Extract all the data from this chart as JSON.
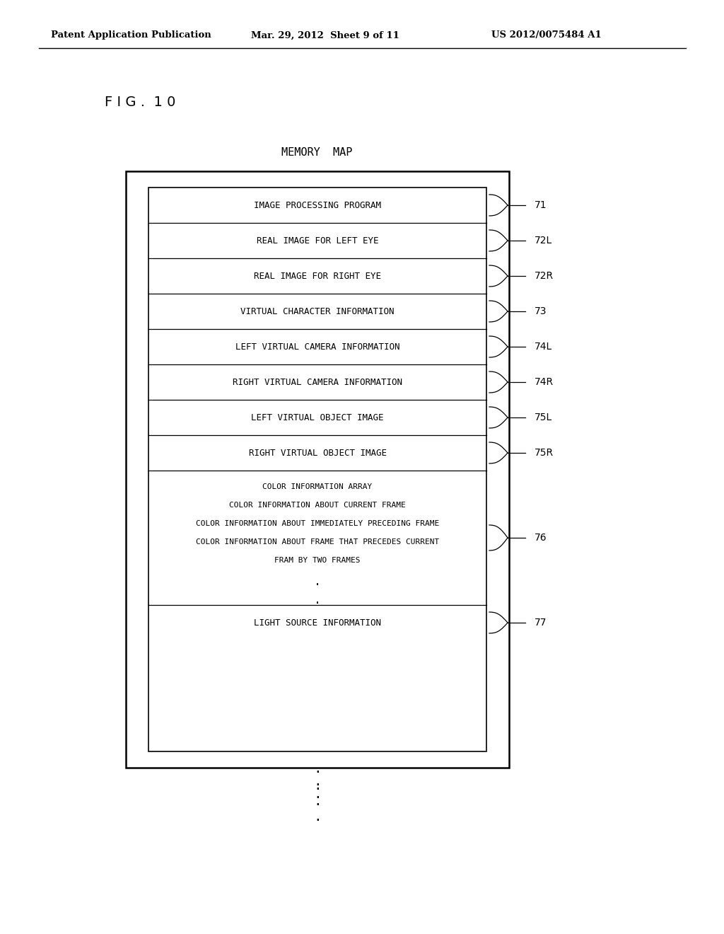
{
  "header_left": "Patent Application Publication",
  "header_mid": "Mar. 29, 2012  Sheet 9 of 11",
  "header_right": "US 2012/0075484 A1",
  "figure_label": "F I G .  1 0",
  "diagram_title": "MEMORY  MAP",
  "rows": [
    {
      "label": "IMAGE PROCESSING PROGRAM",
      "ref": "71",
      "multi": false
    },
    {
      "label": "REAL IMAGE FOR LEFT EYE",
      "ref": "72L",
      "multi": false
    },
    {
      "label": "REAL IMAGE FOR RIGHT EYE",
      "ref": "72R",
      "multi": false
    },
    {
      "label": "VIRTUAL CHARACTER INFORMATION",
      "ref": "73",
      "multi": false
    },
    {
      "label": "LEFT VIRTUAL CAMERA INFORMATION",
      "ref": "74L",
      "multi": false
    },
    {
      "label": "RIGHT VIRTUAL CAMERA INFORMATION",
      "ref": "74R",
      "multi": false
    },
    {
      "label": "LEFT VIRTUAL OBJECT IMAGE",
      "ref": "75L",
      "multi": false
    },
    {
      "label": "RIGHT VIRTUAL OBJECT IMAGE",
      "ref": "75R",
      "multi": false
    },
    {
      "label": "COLOR INFORMATION ARRAY\nCOLOR INFORMATION ABOUT CURRENT FRAME\nCOLOR INFORMATION ABOUT IMMEDIATELY PRECEDING FRAME\nCOLOR INFORMATION ABOUT FRAME THAT PRECEDES CURRENT\nFRAM BY TWO FRAMES\n.\n.",
      "ref": "76",
      "multi": true
    },
    {
      "label": "LIGHT SOURCE INFORMATION",
      "ref": "77",
      "multi": false
    }
  ],
  "bg_color": "#ffffff",
  "text_color": "#000000"
}
